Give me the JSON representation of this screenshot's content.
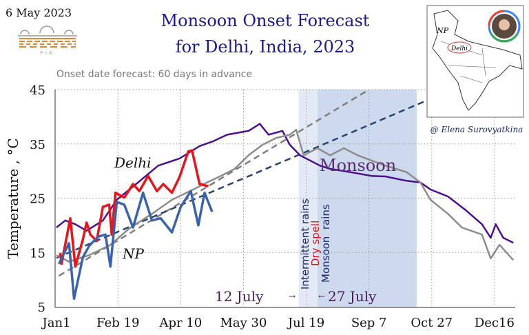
{
  "header": {
    "date": "6 May 2023",
    "logo_text": "PIK",
    "title_line1": "Monsoon Onset Forecast",
    "title_line2": "for Delhi, India, 2023",
    "subtitle": "Onset date forecast: 60 days in advance",
    "credit": "@ Elena Surovyatkina"
  },
  "inset_map": {
    "labels": [
      "NP",
      "Delhi"
    ]
  },
  "chart_data": {
    "type": "line",
    "ylabel": "Temperature , °C",
    "xlabel": "",
    "ylim": [
      5,
      45
    ],
    "yticks": [
      5,
      15,
      25,
      35,
      45
    ],
    "xlim_day_of_year": [
      1,
      366
    ],
    "xticks": [
      {
        "day": 1,
        "label": "Jan1"
      },
      {
        "day": 50,
        "label": "Feb 19"
      },
      {
        "day": 100,
        "label": "Apr 10"
      },
      {
        "day": 150,
        "label": "May 30"
      },
      {
        "day": 200,
        "label": "Jul 19"
      },
      {
        "day": 250,
        "label": "Sep 7"
      },
      {
        "day": 300,
        "label": "Oct 27"
      },
      {
        "day": 350,
        "label": "Dec16"
      }
    ],
    "grid": true,
    "series": [
      {
        "color": "#4b0f8f",
        "x": [
          1,
          8,
          16,
          25,
          38,
          49,
          66,
          82,
          99,
          115,
          126,
          137,
          154,
          163,
          170,
          181,
          187,
          195,
          200,
          211,
          219,
          230,
          252,
          263,
          280,
          291,
          299,
          313,
          327,
          340,
          347,
          351,
          357,
          365
        ],
        "y": [
          19.6,
          20.9,
          20.2,
          19.0,
          20.9,
          24.7,
          27.9,
          31.0,
          32.3,
          34.6,
          35.5,
          36.7,
          37.4,
          38.7,
          36.7,
          37.4,
          34.8,
          32.9,
          32.3,
          31.0,
          30.4,
          30.0,
          29.1,
          29.0,
          28.2,
          27.9,
          26.6,
          25.3,
          22.8,
          20.2,
          17.7,
          20.2,
          17.7,
          16.8
        ]
      },
      {
        "color": "#8c8c8c",
        "x": [
          1,
          11,
          27,
          44,
          60,
          77,
          93,
          110,
          121,
          132,
          143,
          154,
          165,
          176,
          187,
          192,
          198,
          209,
          219,
          230,
          241,
          263,
          280,
          291,
          299,
          313,
          324,
          340,
          347,
          354,
          365
        ],
        "y": [
          14.5,
          13.3,
          14.5,
          16.4,
          19.6,
          22.1,
          24.7,
          26.6,
          27.9,
          29.1,
          30.4,
          32.9,
          34.8,
          36.1,
          36.7,
          37.6,
          32.9,
          34.2,
          32.9,
          34.2,
          32.9,
          31.0,
          29.8,
          27.9,
          24.7,
          22.1,
          19.6,
          18.3,
          13.9,
          16.4,
          13.6
        ]
      },
      {
        "name": "Delhi",
        "color": "#e8141c",
        "x": [
          4,
          5,
          12,
          16,
          22,
          25,
          28,
          33,
          38,
          43,
          45,
          48,
          55,
          62,
          67,
          74,
          81,
          86,
          93,
          99,
          106,
          109,
          115,
          122
        ],
        "y": [
          14.9,
          12.9,
          21.3,
          12.4,
          17.4,
          20.5,
          18.3,
          17.1,
          23.4,
          23.8,
          18.3,
          26.0,
          25.1,
          27.6,
          26.3,
          29.1,
          26.3,
          27.6,
          26.0,
          28.9,
          33.6,
          33.8,
          27.6,
          27.2
        ]
      },
      {
        "name": "NP",
        "color": "#3b62ad",
        "x": [
          3,
          11,
          15,
          22,
          27,
          34,
          40,
          44,
          49,
          55,
          62,
          70,
          77,
          84,
          93,
          100,
          108,
          114,
          119,
          125
        ],
        "y": [
          12.9,
          16.7,
          6.5,
          14.1,
          16.2,
          17.9,
          18.3,
          12.4,
          24.3,
          23.8,
          19.6,
          26.0,
          20.9,
          21.3,
          18.7,
          23.4,
          26.3,
          20.0,
          26.0,
          22.5
        ]
      }
    ],
    "trend_lines": [
      {
        "color": "#7f7f7f",
        "dashed": true,
        "x": [
          3,
          250
        ],
        "y": [
          10.7,
          45
        ]
      },
      {
        "color": "#26446e",
        "dashed": true,
        "x": [
          1,
          296
        ],
        "y": [
          14,
          43
        ]
      }
    ],
    "bands": [
      {
        "label": "Dry spell",
        "from_day": 194,
        "to_day": 209,
        "color": "#e3eaf5"
      },
      {
        "label": "Monsoon rains",
        "from_day": 209,
        "to_day": 288,
        "color": "#cdd9ec"
      }
    ],
    "annotations": {
      "delhi": "Delhi",
      "np": "NP",
      "monsoon": "Monsoon",
      "intermittent": "Intermittent rains",
      "dry_spell": "Dry spell",
      "monsoon_rains": "Monsoon  rains",
      "date_start": "12 July",
      "date_end": "27 July",
      "arrow_right": "→",
      "arrow_left": "←"
    }
  }
}
